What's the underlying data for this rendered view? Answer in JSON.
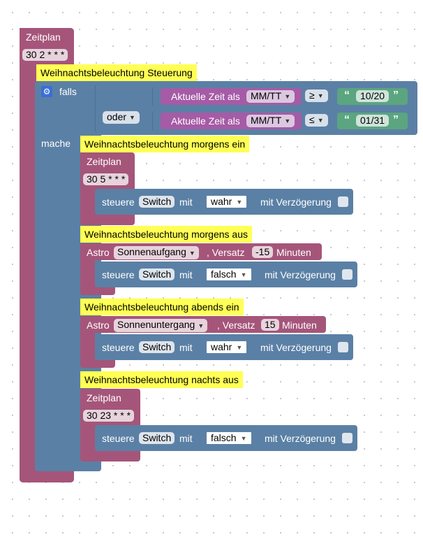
{
  "outer": {
    "title": "Zeitplan",
    "cron": "30 2 * * *",
    "comment": "Weihnachtsbeleuchtung Steuerung"
  },
  "ifblock": {
    "if_label": "falls",
    "do_label": "mache",
    "or_op": "oder",
    "cond1": {
      "prefix": "Aktuelle Zeit als",
      "format": "MM/TT",
      "op": "≥",
      "value": "10/20"
    },
    "cond2": {
      "prefix": "Aktuelle Zeit als",
      "format": "MM/TT",
      "op": "≤",
      "value": "01/31"
    }
  },
  "blocks": [
    {
      "comment": "Weihnachtsbeleuchtung morgens ein",
      "title": "Zeitplan",
      "cron": "30 5 * * *",
      "action": {
        "cmd": "steuere",
        "target": "Switch",
        "with": "mit",
        "value": "wahr",
        "delay": "mit Verzögerung"
      }
    },
    {
      "comment": "Weihnachtsbeleuchtung morgens aus",
      "astro_label": "Astro",
      "event": "Sonnenaufgang",
      "offset_label": ", Versatz",
      "offset": "-15",
      "unit": "Minuten",
      "action": {
        "cmd": "steuere",
        "target": "Switch",
        "with": "mit",
        "value": "falsch",
        "delay": "mit Verzögerung"
      }
    },
    {
      "comment": "Weihnachtsbeleuchtung abends ein",
      "astro_label": "Astro",
      "event": "Sonnenuntergang",
      "offset_label": ", Versatz",
      "offset": "15",
      "unit": "Minuten",
      "action": {
        "cmd": "steuere",
        "target": "Switch",
        "with": "mit",
        "value": "wahr",
        "delay": "mit Verzögerung"
      }
    },
    {
      "comment": "Weihnachtsbeleuchtung nachts aus",
      "title": "Zeitplan",
      "cron": "30 23 * * *",
      "action": {
        "cmd": "steuere",
        "target": "Switch",
        "with": "mit",
        "value": "falsch",
        "delay": "mit Verzögerung"
      }
    }
  ],
  "colors": {
    "schedule": "#a5557a",
    "logic": "#5b80a5",
    "time": "#a55ba5",
    "text": "#5ba580",
    "comment": "#ffff55"
  }
}
